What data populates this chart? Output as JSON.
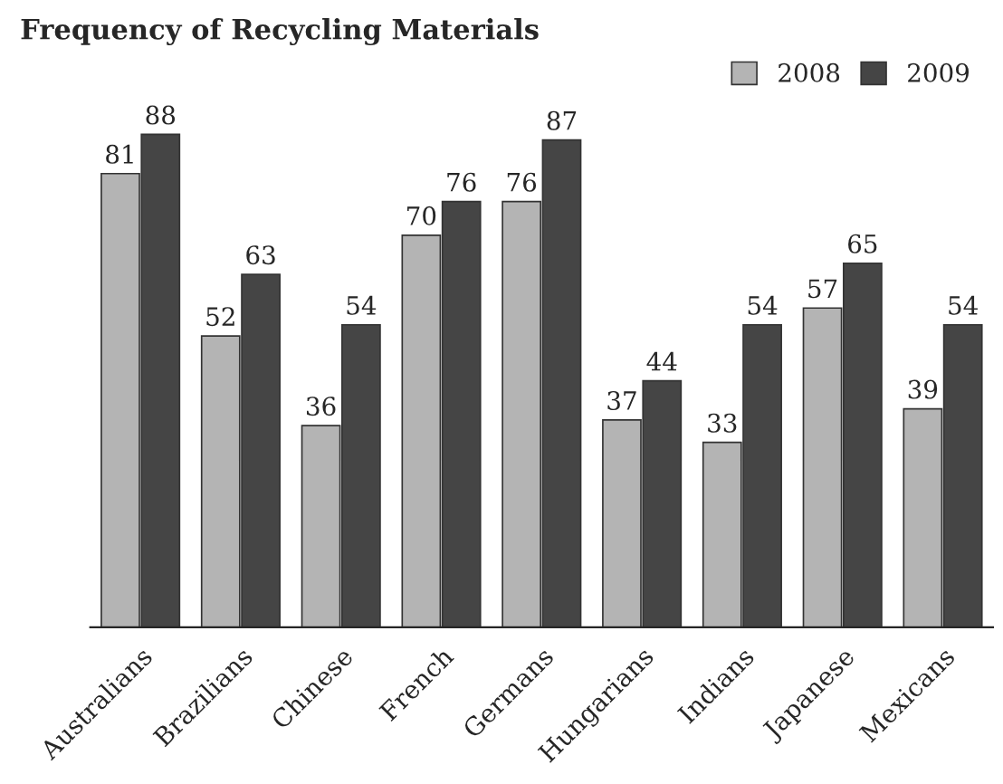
{
  "chart_data": {
    "type": "bar",
    "title": "Frequency of Recycling Materials",
    "categories": [
      "Australians",
      "Brazilians",
      "Chinese",
      "French",
      "Germans",
      "Hungarians",
      "Indians",
      "Japanese",
      "Mexicans"
    ],
    "series": [
      {
        "name": "2008",
        "color": "#b4b4b4",
        "values": [
          81,
          52,
          36,
          70,
          76,
          37,
          33,
          57,
          39
        ]
      },
      {
        "name": "2009",
        "color": "#454545",
        "values": [
          88,
          63,
          54,
          76,
          87,
          44,
          54,
          65,
          54
        ]
      }
    ],
    "data_labels": true,
    "legend": "top right",
    "grid": false
  }
}
